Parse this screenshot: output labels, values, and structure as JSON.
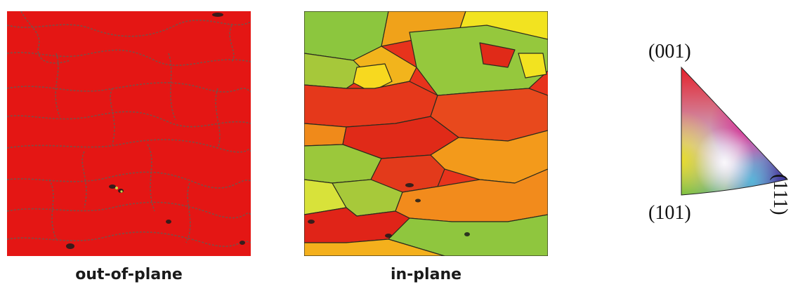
{
  "figure": {
    "panels": [
      {
        "caption": "out-of-plane",
        "dominant_color": "#e41614"
      },
      {
        "caption": "in-plane",
        "dominant_color": "#8cc63e"
      }
    ],
    "legend": {
      "labels": {
        "top": "(001)",
        "bottom": "(101)",
        "right": "(111)"
      },
      "colors": {
        "001": "#e8141c",
        "101": "#3ab52e",
        "111": "#2c2a96"
      }
    }
  }
}
